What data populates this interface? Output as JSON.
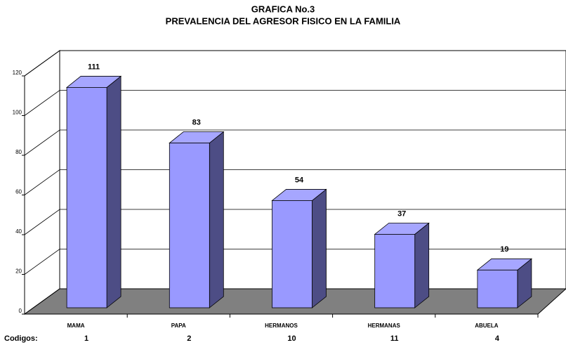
{
  "chart_data": {
    "type": "bar3d",
    "title": "GRAFICA No.3",
    "subtitle": "PREVALENCIA DEL AGRESOR FISICO EN LA FAMILIA",
    "categories": [
      "MAMA",
      "PAPA",
      "HERMANOS",
      "HERMANAS",
      "ABUELA"
    ],
    "values": [
      111,
      83,
      54,
      37,
      19
    ],
    "codes_label": "Codigos:",
    "codes": [
      "1",
      "2",
      "10",
      "11",
      "4"
    ],
    "color": "#9999ff",
    "ylim": [
      0,
      120
    ],
    "yticks": [
      0,
      20,
      40,
      60,
      80,
      100,
      120
    ],
    "grid": true
  }
}
